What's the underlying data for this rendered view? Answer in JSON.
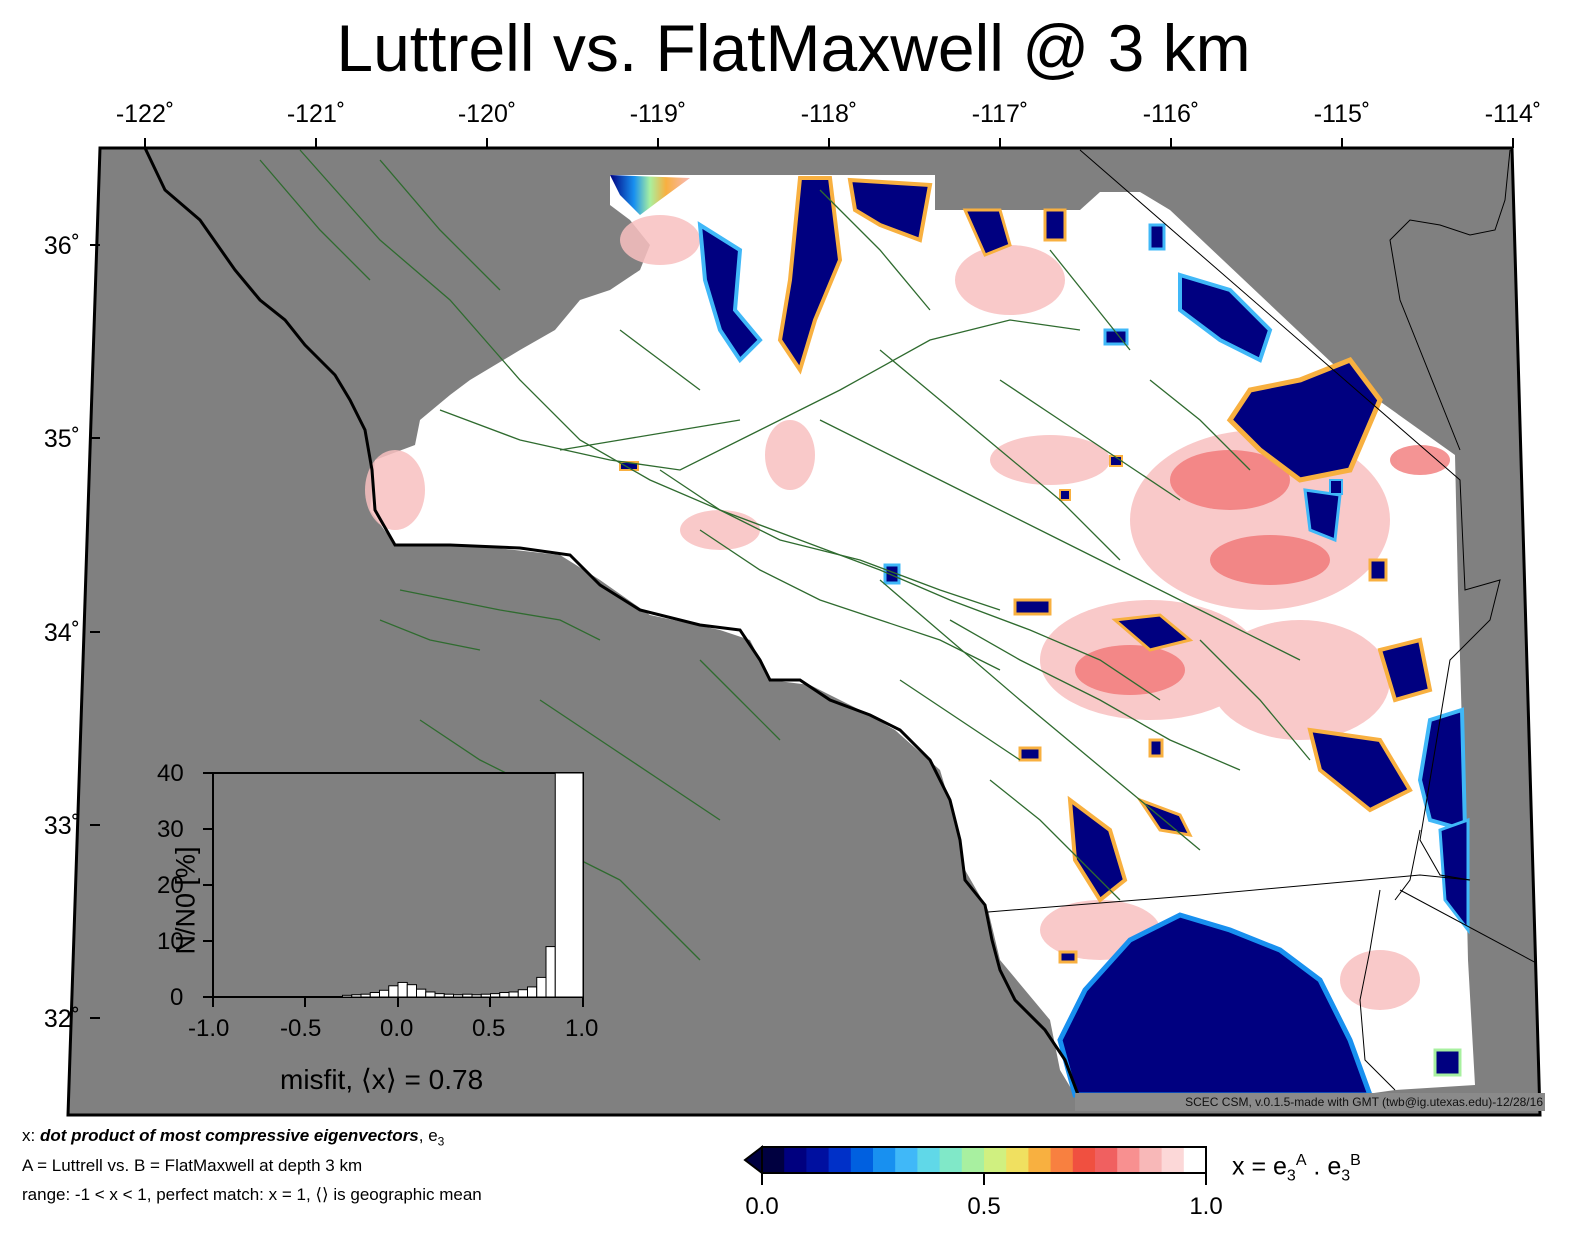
{
  "title": "Luttrell vs. FlatMaxwell @ 3 km",
  "axes": {
    "longitude_labels": [
      "-122˚",
      "-121˚",
      "-120˚",
      "-119˚",
      "-118˚",
      "-117˚",
      "-116˚",
      "-115˚",
      "-114˚"
    ],
    "latitude_labels": [
      "36˚",
      "35˚",
      "34˚",
      "33˚",
      "32˚"
    ]
  },
  "colors": {
    "ocean_land_mask": "#808080",
    "fault_lines": "#2f6b2f",
    "perfect_match": "#ffffff",
    "low_match": "#000080"
  },
  "histogram": {
    "ylabel": "N/N0 [%]",
    "xlabel": "misfit, ⟨x⟩ = 0.78",
    "yticks": [
      "0",
      "10",
      "20",
      "30",
      "40"
    ],
    "xticks": [
      "-1.0",
      "-0.5",
      "0.0",
      "0.5",
      "1.0"
    ],
    "bins": [
      {
        "x": -0.3,
        "pct": 0.3
      },
      {
        "x": -0.25,
        "pct": 0.4
      },
      {
        "x": -0.2,
        "pct": 0.5
      },
      {
        "x": -0.15,
        "pct": 0.8
      },
      {
        "x": -0.1,
        "pct": 1.2
      },
      {
        "x": -0.05,
        "pct": 2.0
      },
      {
        "x": 0.0,
        "pct": 2.6
      },
      {
        "x": 0.05,
        "pct": 2.2
      },
      {
        "x": 0.1,
        "pct": 1.4
      },
      {
        "x": 0.15,
        "pct": 0.9
      },
      {
        "x": 0.2,
        "pct": 0.6
      },
      {
        "x": 0.25,
        "pct": 0.5
      },
      {
        "x": 0.3,
        "pct": 0.4
      },
      {
        "x": 0.35,
        "pct": 0.5
      },
      {
        "x": 0.4,
        "pct": 0.4
      },
      {
        "x": 0.45,
        "pct": 0.5
      },
      {
        "x": 0.5,
        "pct": 0.6
      },
      {
        "x": 0.55,
        "pct": 0.8
      },
      {
        "x": 0.6,
        "pct": 0.9
      },
      {
        "x": 0.65,
        "pct": 1.3
      },
      {
        "x": 0.7,
        "pct": 1.8
      },
      {
        "x": 0.75,
        "pct": 3.5
      },
      {
        "x": 0.8,
        "pct": 9.0
      },
      {
        "x": 0.85,
        "pct": 40.0
      }
    ]
  },
  "info_lines": {
    "line1_prefix": "x: ",
    "line1_bold": "dot product of most compressive eigenvectors",
    "line1_suffix": ", e",
    "line1_sub": "3",
    "line2": "A = Luttrell vs.  B = FlatMaxwell at depth 3 km",
    "line3": "range: -1 < x < 1, perfect match: x = 1, ⟨⟩ is geographic mean"
  },
  "credit": "SCEC CSM, v.0.1.5-made with GMT (twb@ig.utexas.edu)-12/28/16",
  "colorbar": {
    "label_x": "x = e",
    "label_sub": "3",
    "label_supA": "A",
    "label_dot": " . e",
    "label_supB": "B",
    "ticks": [
      "0.0",
      "0.5",
      "1.0"
    ],
    "colors": [
      "#000040",
      "#00007f",
      "#0010a0",
      "#0030c8",
      "#0060e0",
      "#1890f0",
      "#40b8f8",
      "#60d8e8",
      "#80e8c8",
      "#a8f0a0",
      "#d0f080",
      "#f0e060",
      "#f8b040",
      "#f88040",
      "#f05040",
      "#f06060",
      "#f89090",
      "#f8b8b8",
      "#fcd8d8",
      "#ffffff"
    ]
  }
}
